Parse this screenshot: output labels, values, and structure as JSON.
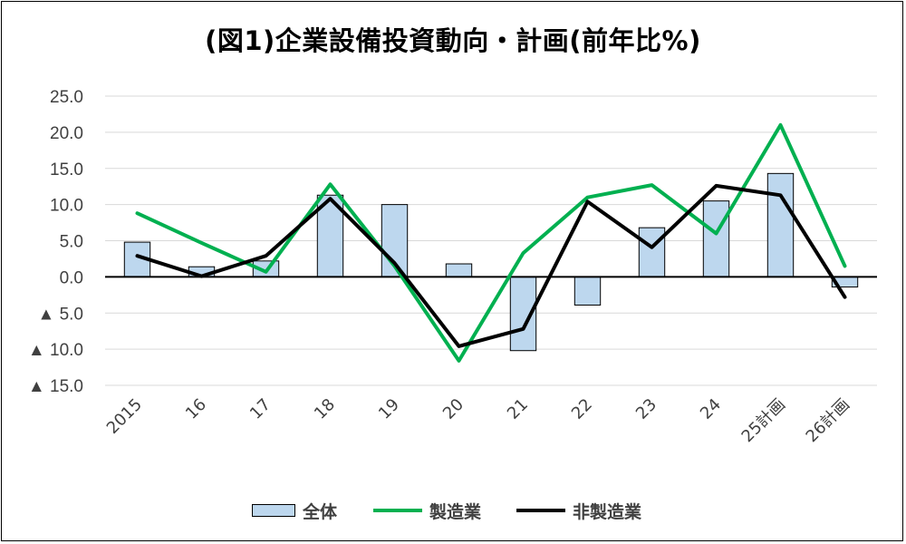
{
  "chart_data": {
    "type": "bar",
    "title": "(図1)企業設備投資動向・計画(前年比%)",
    "categories": [
      "2015",
      "16",
      "17",
      "18",
      "19",
      "20",
      "21",
      "22",
      "23",
      "24",
      "25計画",
      "26計画"
    ],
    "ylim": [
      -15,
      25
    ],
    "yticks": [
      25,
      20,
      15,
      10,
      5,
      0,
      -5,
      -10,
      -15
    ],
    "ytick_labels": [
      "25.0",
      "20.0",
      "15.0",
      "10.0",
      "5.0",
      "0.0",
      "▲ 5.0",
      "▲ 10.0",
      "▲ 15.0"
    ],
    "grid": true,
    "legend_position": "bottom",
    "series": [
      {
        "name": "全体",
        "kind": "bar",
        "color": "#bdd7ee",
        "values": [
          4.8,
          1.4,
          2.2,
          11.3,
          10.0,
          1.8,
          -10.2,
          -3.9,
          6.8,
          10.5,
          14.3,
          -1.4
        ]
      },
      {
        "name": "製造業",
        "kind": "line",
        "color": "#00b050",
        "values": [
          8.8,
          4.7,
          0.7,
          12.8,
          1.5,
          -11.6,
          3.3,
          11.0,
          12.7,
          6.0,
          21.0,
          1.5
        ]
      },
      {
        "name": "非製造業",
        "kind": "line",
        "color": "#000000",
        "values": [
          2.9,
          0.1,
          2.9,
          10.8,
          1.9,
          -9.6,
          -7.2,
          10.4,
          4.1,
          12.6,
          11.3,
          -2.8
        ]
      }
    ]
  }
}
